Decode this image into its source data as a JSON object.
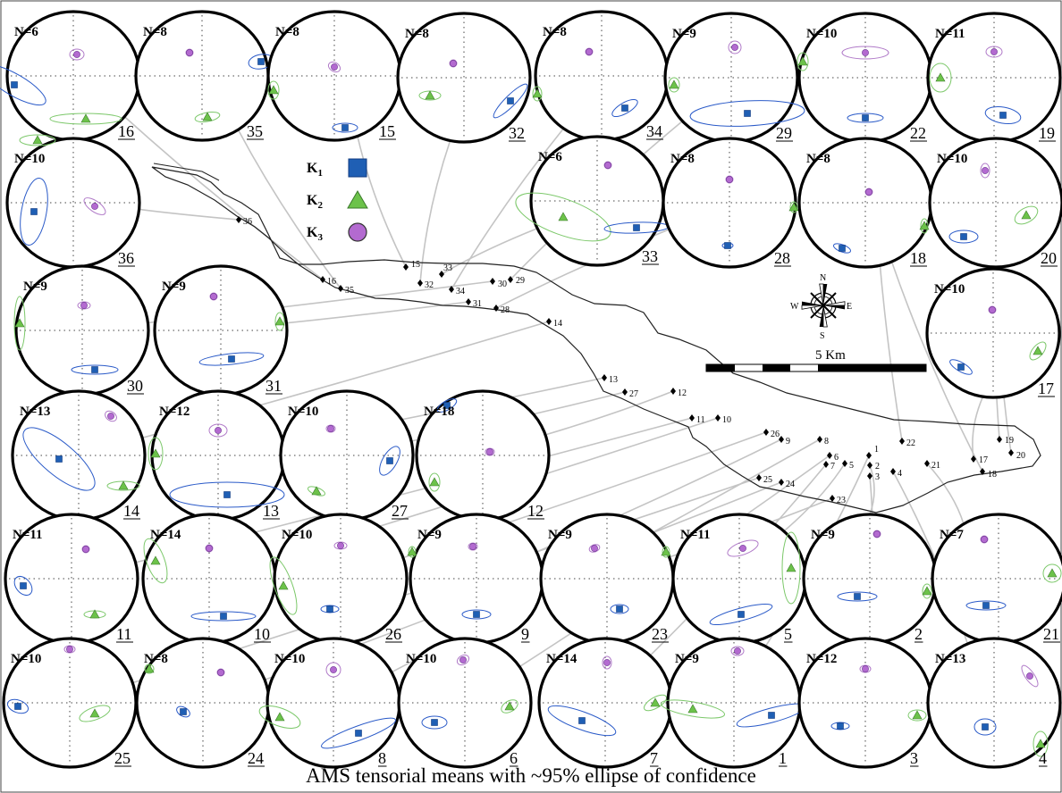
{
  "caption": "AMS tensorial means with ~95% ellipse of confidence",
  "legend": [
    {
      "symbol": "square",
      "main": "K",
      "sub": "1",
      "color": "#1f5fb4"
    },
    {
      "symbol": "triangle",
      "main": "K",
      "sub": "2",
      "color": "#6cc24a"
    },
    {
      "symbol": "circle",
      "main": "K",
      "sub": "3",
      "color": "#b36ad0"
    }
  ],
  "scale_bar_label": "5 Km",
  "compass": {
    "n": "N",
    "s": "S",
    "e": "E",
    "w": "W"
  },
  "colors": {
    "k1": "#1f5fb4",
    "k2": "#6cc24a",
    "k3": "#b36ad0",
    "ellipse_k1": "#2a5ac8",
    "ellipse_k2": "#7cc86a",
    "ellipse_k3": "#b07ac8",
    "leader": "#c4c4c4"
  },
  "stereonets": [
    {
      "site": "16",
      "n": "N=6"
    },
    {
      "site": "35",
      "n": "N=8"
    },
    {
      "site": "15",
      "n": "N=8"
    },
    {
      "site": "32",
      "n": "N=8"
    },
    {
      "site": "34",
      "n": "N=8"
    },
    {
      "site": "29",
      "n": "N=9"
    },
    {
      "site": "22",
      "n": "N=10"
    },
    {
      "site": "19",
      "n": "N=11"
    },
    {
      "site": "36",
      "n": "N=10"
    },
    {
      "site": "33",
      "n": "N=6"
    },
    {
      "site": "28",
      "n": "N=8"
    },
    {
      "site": "18",
      "n": "N=8"
    },
    {
      "site": "20",
      "n": "N=10"
    },
    {
      "site": "30",
      "n": "N=9"
    },
    {
      "site": "31",
      "n": "N=9"
    },
    {
      "site": "17",
      "n": "N=10"
    },
    {
      "site": "14",
      "n": "N=13"
    },
    {
      "site": "13",
      "n": "N=12"
    },
    {
      "site": "27",
      "n": "N=10"
    },
    {
      "site": "12",
      "n": "N=18"
    },
    {
      "site": "11",
      "n": "N=11"
    },
    {
      "site": "10",
      "n": "N=14"
    },
    {
      "site": "26",
      "n": "N=10"
    },
    {
      "site": "9",
      "n": "N=9"
    },
    {
      "site": "23",
      "n": "N=9"
    },
    {
      "site": "5",
      "n": "N=11"
    },
    {
      "site": "2",
      "n": "N=9"
    },
    {
      "site": "21",
      "n": "N=7"
    },
    {
      "site": "25",
      "n": "N=10"
    },
    {
      "site": "24",
      "n": "N=8"
    },
    {
      "site": "8",
      "n": "N=10"
    },
    {
      "site": "6",
      "n": "N=10"
    },
    {
      "site": "7",
      "n": "N=14"
    },
    {
      "site": "1",
      "n": "N=9"
    },
    {
      "site": "3",
      "n": "N=12"
    },
    {
      "site": "4",
      "n": "N=13"
    }
  ],
  "map_sites": [
    "36",
    "16",
    "35",
    "15",
    "32",
    "33",
    "34",
    "30",
    "29",
    "31",
    "28",
    "14",
    "13",
    "27",
    "12",
    "11",
    "10",
    "26",
    "9",
    "8",
    "6",
    "7",
    "5",
    "1",
    "2",
    "3",
    "4",
    "25",
    "24",
    "23",
    "22",
    "21",
    "17",
    "19",
    "20",
    "18"
  ]
}
